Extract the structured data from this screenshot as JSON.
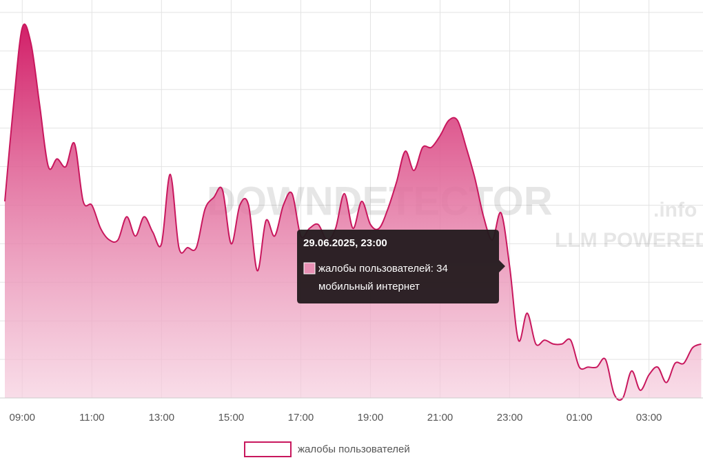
{
  "chart_data": {
    "type": "area",
    "categories": [
      null,
      null,
      "09:00",
      null,
      null,
      null,
      null,
      null,
      null,
      null,
      "11:00",
      null,
      null,
      null,
      null,
      null,
      null,
      null,
      "13:00",
      null,
      null,
      null,
      null,
      null,
      null,
      null,
      "15:00",
      null,
      null,
      null,
      null,
      null,
      null,
      null,
      "17:00",
      null,
      null,
      null,
      null,
      null,
      null,
      null,
      "19:00",
      null,
      null,
      null,
      null,
      null,
      null,
      null,
      "21:00",
      null,
      null,
      null,
      null,
      null,
      null,
      null,
      "23:00",
      null,
      null,
      null,
      null,
      null,
      null,
      null,
      "01:00",
      null,
      null,
      null,
      null,
      null,
      null,
      null,
      "03:00",
      null,
      null,
      null,
      null,
      null,
      null
    ],
    "series": [
      {
        "name": "жалобы пользователей",
        "color": "#c8175d",
        "values": [
          51,
          76,
          96,
          92,
          76,
          60,
          62,
          60,
          66,
          51,
          50,
          44,
          41,
          41,
          47,
          42,
          47,
          43,
          40,
          58,
          39,
          39,
          39,
          49,
          52,
          54,
          40,
          50,
          50,
          33,
          46,
          42,
          50,
          53,
          42,
          44,
          45,
          41,
          44,
          53,
          44,
          51,
          45,
          44,
          49,
          56,
          64,
          59,
          65,
          65,
          68,
          72,
          72,
          65,
          57,
          47,
          41,
          48,
          34,
          15,
          22,
          14,
          15,
          14,
          14,
          15,
          8,
          8,
          8,
          10,
          1,
          0,
          7,
          2,
          6,
          8,
          4,
          9,
          9,
          13,
          14
        ]
      }
    ],
    "ylim": [
      0,
      100
    ],
    "yticks": [
      0,
      10,
      20,
      30,
      40,
      50,
      60,
      70,
      80,
      90,
      100
    ],
    "grid": true,
    "watermark": {
      "brand": "DOWNDETECTOR",
      "domain": ".info",
      "tagline": "LLM POWERED"
    },
    "tooltip": {
      "index": 58,
      "title": "29.06.2025, 23:00",
      "label": "жалобы пользователей: 34",
      "subtitle": "мобильный интернет"
    }
  }
}
